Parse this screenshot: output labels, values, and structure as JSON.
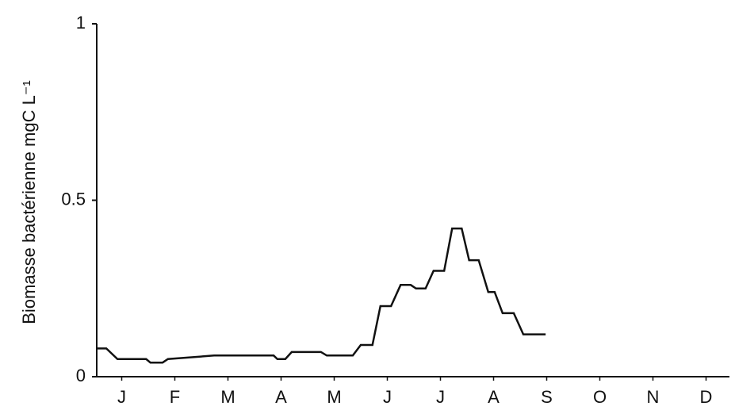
{
  "chart_data": {
    "type": "line",
    "y_label": "Biomasse bactérienne  mgC L⁻¹",
    "xlim": [
      0,
      12
    ],
    "xticks": [
      {
        "value": 0.5,
        "label": "J"
      },
      {
        "value": 1.5,
        "label": "F"
      },
      {
        "value": 2.5,
        "label": "M"
      },
      {
        "value": 3.5,
        "label": "A"
      },
      {
        "value": 4.5,
        "label": "M"
      },
      {
        "value": 5.5,
        "label": "J"
      },
      {
        "value": 6.5,
        "label": "J"
      },
      {
        "value": 7.5,
        "label": "A"
      },
      {
        "value": 8.5,
        "label": "S"
      },
      {
        "value": 9.5,
        "label": "O"
      },
      {
        "value": 10.5,
        "label": "N"
      },
      {
        "value": 11.5,
        "label": "D"
      }
    ],
    "ylim": [
      0,
      1
    ],
    "yticks": [
      0,
      0.5,
      1
    ],
    "series": [
      {
        "color": "#111111",
        "x": [
          0.03,
          0.21,
          0.42,
          0.72,
          0.78,
          0.96,
          1.04,
          1.27,
          1.37,
          2.24,
          2.69,
          3.13,
          3.36,
          3.43,
          3.58,
          3.7,
          4.25,
          4.36,
          4.85,
          5.0,
          5.22,
          5.37,
          5.57,
          5.75,
          5.94,
          6.04,
          6.22,
          6.37,
          6.57,
          6.72,
          6.9,
          7.04,
          7.22,
          7.4,
          7.52,
          7.67,
          7.88,
          8.06,
          8.48
        ],
        "values": [
          0.08,
          0.08,
          0.05,
          0.05,
          0.05,
          0.05,
          0.04,
          0.04,
          0.05,
          0.06,
          0.06,
          0.06,
          0.06,
          0.05,
          0.05,
          0.07,
          0.07,
          0.06,
          0.06,
          0.09,
          0.09,
          0.2,
          0.2,
          0.26,
          0.26,
          0.25,
          0.25,
          0.3,
          0.3,
          0.42,
          0.42,
          0.33,
          0.33,
          0.24,
          0.24,
          0.18,
          0.18,
          0.12,
          0.12
        ]
      }
    ]
  }
}
